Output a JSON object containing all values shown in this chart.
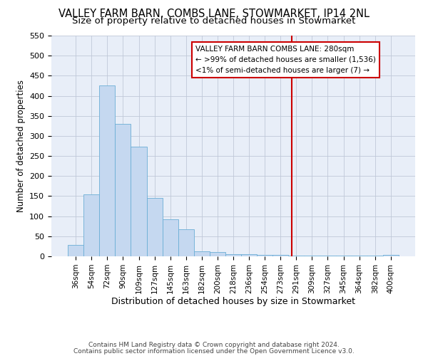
{
  "title1": "VALLEY FARM BARN, COMBS LANE, STOWMARKET, IP14 2NL",
  "title2": "Size of property relative to detached houses in Stowmarket",
  "xlabel": "Distribution of detached houses by size in Stowmarket",
  "ylabel": "Number of detached properties",
  "bar_color": "#c5d8f0",
  "bar_edge_color": "#6baed6",
  "bg_color": "#e8eef8",
  "grid_color": "#c0c8d8",
  "categories": [
    "36sqm",
    "54sqm",
    "72sqm",
    "90sqm",
    "109sqm",
    "127sqm",
    "145sqm",
    "163sqm",
    "182sqm",
    "200sqm",
    "218sqm",
    "236sqm",
    "254sqm",
    "273sqm",
    "291sqm",
    "309sqm",
    "327sqm",
    "345sqm",
    "364sqm",
    "382sqm",
    "400sqm"
  ],
  "values": [
    28,
    155,
    425,
    330,
    273,
    145,
    92,
    68,
    13,
    10,
    5,
    5,
    4,
    4,
    2,
    2,
    2,
    2,
    2,
    2,
    4
  ],
  "vline_x_index": 13.72,
  "vline_color": "#cc0000",
  "annotation_text_line1": "VALLEY FARM BARN COMBS LANE: 280sqm",
  "annotation_text_line2": "← >99% of detached houses are smaller (1,536)",
  "annotation_text_line3": "<1% of semi-detached houses are larger (7) →",
  "footer1": "Contains HM Land Registry data © Crown copyright and database right 2024.",
  "footer2": "Contains public sector information licensed under the Open Government Licence v3.0.",
  "ylim": [
    0,
    550
  ],
  "yticks": [
    0,
    50,
    100,
    150,
    200,
    250,
    300,
    350,
    400,
    450,
    500,
    550
  ]
}
